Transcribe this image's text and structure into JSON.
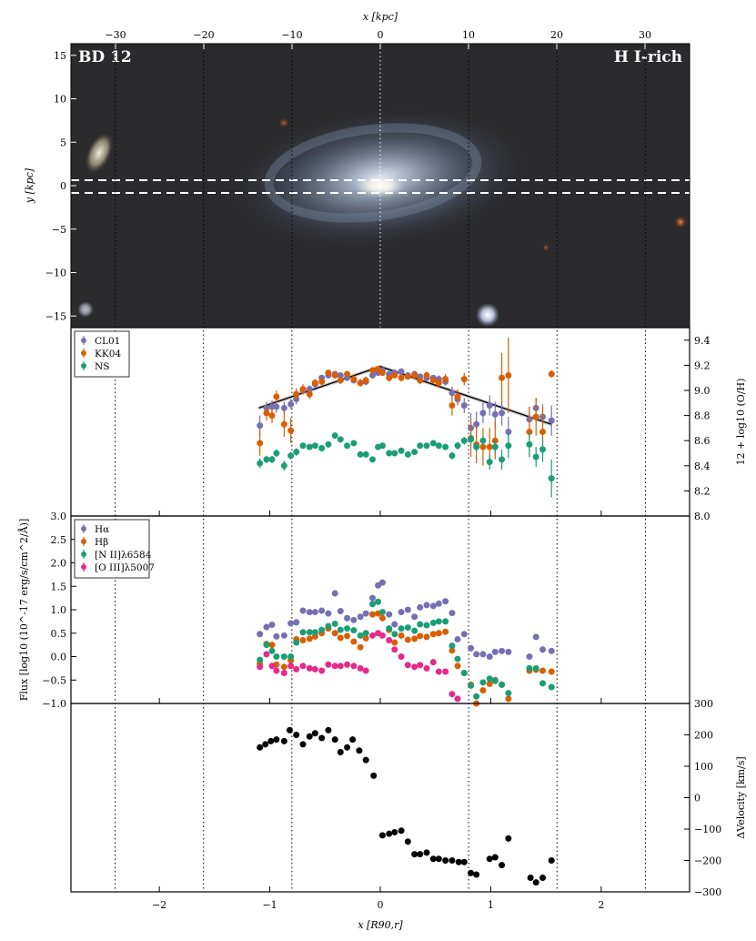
{
  "image_panel": {
    "label_left": "BD 12",
    "label_right": "H I-rich",
    "xlabel": "x [kpc]",
    "ylabel": "y [kpc]",
    "x_ticks": [
      -30,
      -20,
      -10,
      0,
      10,
      20,
      30
    ],
    "y_ticks": [
      15,
      10,
      5,
      0,
      -5,
      -10,
      -15
    ]
  },
  "shared_x": {
    "label": "x [R90,r]",
    "ticks": [
      -2,
      -1,
      0,
      1,
      2
    ],
    "xlim": [
      -2.8,
      2.8
    ],
    "vlines": [
      -2.4,
      -1.6,
      -0.8,
      0,
      0.8,
      1.6,
      2.4
    ]
  },
  "colors": {
    "CL01": "#7570b3",
    "KK04": "#d95f02",
    "NS": "#1b9e77",
    "Halpha": "#7570b3",
    "Hbeta": "#d95f02",
    "NII": "#1b9e77",
    "OIII": "#e7298a",
    "velocity": "#000000"
  },
  "chart_data": [
    {
      "type": "scatter",
      "ylabel": "12 + log10 (O/H)",
      "ylim": [
        8.0,
        9.5
      ],
      "y_ticks": [
        8.0,
        8.2,
        8.4,
        8.6,
        8.8,
        9.0,
        9.2,
        9.4
      ],
      "legend": "top-left",
      "fit_line": {
        "x": [
          -1.1,
          0.0,
          1.55
        ],
        "y": [
          8.86,
          9.19,
          8.73
        ]
      },
      "series": [
        {
          "name": "CL01",
          "key": "CL01",
          "x": [
            -1.09,
            -1.03,
            -0.98,
            -0.94,
            -0.87,
            -0.81,
            -0.76,
            -0.7,
            -0.64,
            -0.59,
            -0.53,
            -0.47,
            -0.41,
            -0.36,
            -0.3,
            -0.24,
            -0.18,
            -0.13,
            -0.07,
            -0.02,
            0.02,
            0.08,
            0.13,
            0.19,
            0.25,
            0.31,
            0.36,
            0.42,
            0.48,
            0.53,
            0.59,
            0.65,
            0.7,
            0.76,
            0.82,
            0.87,
            0.93,
            0.99,
            1.04,
            1.1,
            1.16,
            1.35,
            1.41,
            1.47,
            1.55
          ],
          "y": [
            8.72,
            8.86,
            8.87,
            8.87,
            8.86,
            8.89,
            8.93,
            9.0,
            9.01,
            9.05,
            9.1,
            9.12,
            9.13,
            9.12,
            9.1,
            9.08,
            9.06,
            9.07,
            9.12,
            9.14,
            9.16,
            9.13,
            9.14,
            9.15,
            9.12,
            9.13,
            9.11,
            9.1,
            9.1,
            9.09,
            9.07,
            8.98,
            8.93,
            8.88,
            8.7,
            8.73,
            8.82,
            8.88,
            8.81,
            8.82,
            8.67,
            8.77,
            8.86,
            8.79,
            8.76
          ],
          "err": [
            0.08,
            0.05,
            0.05,
            0.05,
            0.05,
            0.04,
            0.04,
            0.03,
            0.03,
            0.03,
            0.02,
            0.02,
            0.02,
            0.02,
            0.02,
            0.02,
            0.03,
            0.03,
            0.02,
            0.02,
            0.02,
            0.02,
            0.02,
            0.02,
            0.02,
            0.02,
            0.02,
            0.02,
            0.02,
            0.03,
            0.03,
            0.05,
            0.05,
            0.06,
            0.12,
            0.1,
            0.08,
            0.08,
            0.1,
            0.1,
            0.12,
            0.1,
            0.08,
            0.1,
            0.12
          ]
        },
        {
          "name": "KK04",
          "key": "KK04",
          "x": [
            -1.09,
            -1.03,
            -0.98,
            -0.94,
            -0.87,
            -0.81,
            -0.76,
            -0.7,
            -0.64,
            -0.59,
            -0.53,
            -0.47,
            -0.41,
            -0.36,
            -0.3,
            -0.24,
            -0.18,
            -0.13,
            -0.07,
            -0.02,
            0.02,
            0.08,
            0.13,
            0.19,
            0.25,
            0.31,
            0.36,
            0.42,
            0.48,
            0.53,
            0.59,
            0.65,
            0.7,
            0.76,
            0.82,
            0.87,
            0.93,
            0.99,
            1.04,
            1.1,
            1.16,
            1.35,
            1.41,
            1.47,
            1.55
          ],
          "y": [
            8.58,
            8.82,
            8.8,
            8.95,
            8.73,
            8.68,
            8.97,
            9.01,
            8.97,
            9.06,
            9.07,
            9.14,
            9.12,
            9.08,
            9.13,
            9.09,
            9.06,
            9.08,
            9.16,
            9.17,
            9.14,
            9.1,
            9.12,
            9.1,
            9.11,
            9.12,
            9.08,
            9.12,
            9.08,
            9.06,
            9.09,
            8.88,
            8.95,
            9.09,
            8.62,
            8.57,
            8.55,
            8.55,
            8.6,
            9.1,
            9.12,
            8.67,
            8.79,
            8.67,
            9.13
          ],
          "err": [
            0.1,
            0.06,
            0.06,
            0.05,
            0.1,
            0.1,
            0.05,
            0.04,
            0.04,
            0.03,
            0.03,
            0.02,
            0.02,
            0.03,
            0.02,
            0.03,
            0.03,
            0.03,
            0.02,
            0.02,
            0.02,
            0.03,
            0.02,
            0.03,
            0.02,
            0.03,
            0.03,
            0.03,
            0.03,
            0.04,
            0.04,
            0.08,
            0.06,
            0.05,
            0.15,
            0.15,
            0.15,
            0.15,
            0.15,
            0.2,
            0.3,
            0.2,
            0.15,
            0.2,
            0.03
          ]
        },
        {
          "name": "NS",
          "key": "NS",
          "x": [
            -1.09,
            -1.03,
            -0.98,
            -0.94,
            -0.87,
            -0.81,
            -0.76,
            -0.7,
            -0.64,
            -0.59,
            -0.53,
            -0.47,
            -0.41,
            -0.36,
            -0.3,
            -0.24,
            -0.18,
            -0.13,
            -0.07,
            -0.02,
            0.02,
            0.08,
            0.13,
            0.19,
            0.25,
            0.31,
            0.36,
            0.42,
            0.48,
            0.53,
            0.59,
            0.65,
            0.7,
            0.76,
            0.82,
            0.87,
            0.93,
            0.99,
            1.04,
            1.1,
            1.16,
            1.35,
            1.41,
            1.47,
            1.55
          ],
          "y": [
            8.42,
            8.45,
            8.45,
            8.5,
            8.4,
            8.48,
            8.51,
            8.56,
            8.55,
            8.56,
            8.54,
            8.57,
            8.64,
            8.61,
            8.56,
            8.58,
            8.49,
            8.49,
            8.45,
            8.55,
            8.56,
            8.5,
            8.5,
            8.52,
            8.49,
            8.51,
            8.56,
            8.56,
            8.58,
            8.56,
            8.55,
            8.48,
            8.56,
            8.6,
            8.61,
            8.55,
            8.6,
            8.43,
            8.55,
            8.45,
            8.56,
            8.57,
            8.47,
            8.53,
            8.3
          ],
          "err": [
            0.04,
            0.03,
            0.03,
            0.03,
            0.04,
            0.03,
            0.03,
            0.02,
            0.02,
            0.02,
            0.02,
            0.02,
            0.02,
            0.02,
            0.02,
            0.02,
            0.02,
            0.02,
            0.02,
            0.02,
            0.02,
            0.02,
            0.02,
            0.02,
            0.02,
            0.02,
            0.02,
            0.02,
            0.02,
            0.02,
            0.02,
            0.03,
            0.03,
            0.03,
            0.05,
            0.04,
            0.04,
            0.06,
            0.06,
            0.08,
            0.1,
            0.1,
            0.08,
            0.1,
            0.15
          ]
        }
      ]
    },
    {
      "type": "scatter",
      "ylabel": "Flux [log10 (10^-17 erg/s/cm^2/Å)]",
      "ylim": [
        -1.0,
        3.0
      ],
      "y_ticks": [
        -1.0,
        -0.5,
        0.0,
        0.5,
        1.0,
        1.5,
        2.0,
        2.5,
        3.0
      ],
      "legend": "top-left",
      "series": [
        {
          "name": "Hα",
          "key": "Halpha",
          "x": [
            -1.09,
            -1.03,
            -0.98,
            -0.94,
            -0.87,
            -0.81,
            -0.76,
            -0.7,
            -0.64,
            -0.59,
            -0.53,
            -0.47,
            -0.41,
            -0.36,
            -0.3,
            -0.24,
            -0.18,
            -0.13,
            -0.07,
            -0.02,
            0.02,
            0.08,
            0.13,
            0.19,
            0.25,
            0.31,
            0.36,
            0.42,
            0.48,
            0.53,
            0.59,
            0.65,
            0.7,
            0.76,
            0.82,
            0.87,
            0.93,
            0.99,
            1.04,
            1.1,
            1.16,
            1.35,
            1.41,
            1.47,
            1.55
          ],
          "y": [
            0.48,
            0.63,
            0.68,
            0.43,
            0.45,
            0.71,
            0.73,
            0.98,
            0.95,
            0.95,
            0.98,
            0.92,
            1.35,
            0.97,
            0.82,
            0.78,
            0.85,
            0.92,
            1.25,
            1.52,
            1.58,
            0.9,
            0.69,
            0.95,
            1.0,
            0.85,
            1.05,
            1.1,
            1.08,
            1.13,
            1.18,
            0.93,
            0.37,
            0.48,
            0.18,
            0.05,
            0.05,
            0.0,
            0.1,
            0.12,
            0.1,
            0.0,
            0.42,
            0.15,
            0.12
          ],
          "err": []
        },
        {
          "name": "Hβ",
          "key": "Hbeta",
          "x": [
            -1.09,
            -1.03,
            -0.98,
            -0.94,
            -0.87,
            -0.81,
            -0.76,
            -0.7,
            -0.64,
            -0.59,
            -0.53,
            -0.47,
            -0.41,
            -0.36,
            -0.3,
            -0.24,
            -0.18,
            -0.13,
            -0.07,
            -0.02,
            0.02,
            0.08,
            0.13,
            0.19,
            0.25,
            0.31,
            0.36,
            0.42,
            0.48,
            0.53,
            0.59,
            0.65,
            0.7,
            0.76,
            0.82,
            0.87,
            0.93,
            0.99,
            1.04,
            1.1,
            1.16,
            1.35,
            1.41,
            1.47,
            1.55
          ],
          "y": [
            -0.15,
            0.27,
            0.25,
            -0.17,
            -0.22,
            -0.08,
            0.37,
            0.35,
            0.38,
            0.43,
            0.5,
            0.6,
            0.5,
            0.4,
            0.44,
            0.32,
            0.2,
            0.39,
            0.9,
            0.92,
            0.82,
            0.57,
            0.3,
            0.45,
            0.36,
            0.38,
            0.44,
            0.42,
            0.48,
            0.5,
            0.53,
            0.13,
            -0.2,
            -0.35,
            -0.6,
            -1.0,
            -0.72,
            -0.58,
            -0.5,
            -0.6,
            -0.9,
            -0.3,
            -0.28,
            -0.3,
            -0.32
          ],
          "err": []
        },
        {
          "name": "[N II]λ6584",
          "key": "NII",
          "x": [
            -1.09,
            -1.03,
            -0.98,
            -0.94,
            -0.87,
            -0.81,
            -0.76,
            -0.7,
            -0.64,
            -0.59,
            -0.53,
            -0.47,
            -0.41,
            -0.36,
            -0.3,
            -0.24,
            -0.18,
            -0.13,
            -0.07,
            -0.02,
            0.02,
            0.08,
            0.13,
            0.19,
            0.25,
            0.31,
            0.36,
            0.42,
            0.48,
            0.53,
            0.59,
            0.65,
            0.7,
            0.76,
            0.82,
            0.87,
            0.93,
            0.99,
            1.04,
            1.1,
            1.16,
            1.35,
            1.41,
            1.47,
            1.55
          ],
          "y": [
            -0.07,
            0.25,
            0.12,
            0.0,
            0.0,
            0.0,
            0.3,
            0.52,
            0.52,
            0.52,
            0.57,
            0.65,
            0.7,
            0.57,
            0.6,
            0.56,
            0.45,
            0.5,
            1.12,
            1.17,
            0.95,
            0.6,
            0.48,
            0.6,
            0.62,
            0.55,
            0.69,
            0.67,
            0.72,
            0.75,
            0.75,
            0.23,
            -0.05,
            -0.35,
            -0.62,
            -0.85,
            -0.55,
            -0.47,
            -0.52,
            -0.6,
            -0.78,
            -0.25,
            -0.25,
            -0.57,
            -0.65
          ],
          "err": []
        },
        {
          "name": "[O III]λ5007",
          "key": "OIII",
          "x": [
            -1.09,
            -1.03,
            -0.98,
            -0.94,
            -0.87,
            -0.81,
            -0.76,
            -0.7,
            -0.64,
            -0.59,
            -0.53,
            -0.47,
            -0.41,
            -0.36,
            -0.3,
            -0.24,
            -0.18,
            -0.13,
            -0.07,
            -0.02,
            0.02,
            0.08,
            0.13,
            0.19,
            0.25,
            0.31,
            0.36,
            0.42,
            0.48,
            0.53,
            0.59,
            0.65,
            0.7
          ],
          "y": [
            -0.22,
            0.05,
            -0.2,
            -0.3,
            -0.35,
            -0.2,
            -0.27,
            -0.2,
            -0.25,
            -0.27,
            -0.3,
            -0.17,
            -0.2,
            -0.2,
            -0.17,
            -0.2,
            -0.25,
            -0.3,
            0.45,
            0.5,
            0.45,
            0.35,
            0.15,
            0.0,
            -0.18,
            -0.22,
            -0.18,
            -0.25,
            -0.12,
            -0.32,
            -0.32,
            -0.8,
            -0.9
          ],
          "err": []
        }
      ]
    },
    {
      "type": "scatter",
      "ylabel": "ΔVelocity [km/s]",
      "ylim": [
        -300,
        300
      ],
      "y_ticks": [
        -300,
        -200,
        -100,
        0,
        100,
        200,
        300
      ],
      "series": [
        {
          "name": "",
          "key": "velocity",
          "x": [
            -1.09,
            -1.04,
            -0.99,
            -0.94,
            -0.87,
            -0.82,
            -0.76,
            -0.7,
            -0.64,
            -0.59,
            -0.53,
            -0.47,
            -0.41,
            -0.36,
            -0.3,
            -0.25,
            -0.19,
            -0.13,
            -0.06,
            0.02,
            0.08,
            0.13,
            0.19,
            0.25,
            0.31,
            0.36,
            0.42,
            0.48,
            0.53,
            0.59,
            0.65,
            0.71,
            0.76,
            0.82,
            0.87,
            0.99,
            1.04,
            1.1,
            1.16,
            1.36,
            1.41,
            1.47,
            1.55
          ],
          "y": [
            160,
            170,
            180,
            185,
            180,
            215,
            200,
            170,
            195,
            205,
            190,
            215,
            185,
            145,
            160,
            185,
            150,
            120,
            70,
            -120,
            -115,
            -110,
            -105,
            -140,
            -180,
            -180,
            -175,
            -195,
            -195,
            -200,
            -200,
            -205,
            -205,
            -240,
            -245,
            -195,
            -190,
            -215,
            -130,
            -255,
            -270,
            -255,
            -200
          ],
          "err": []
        }
      ]
    }
  ]
}
